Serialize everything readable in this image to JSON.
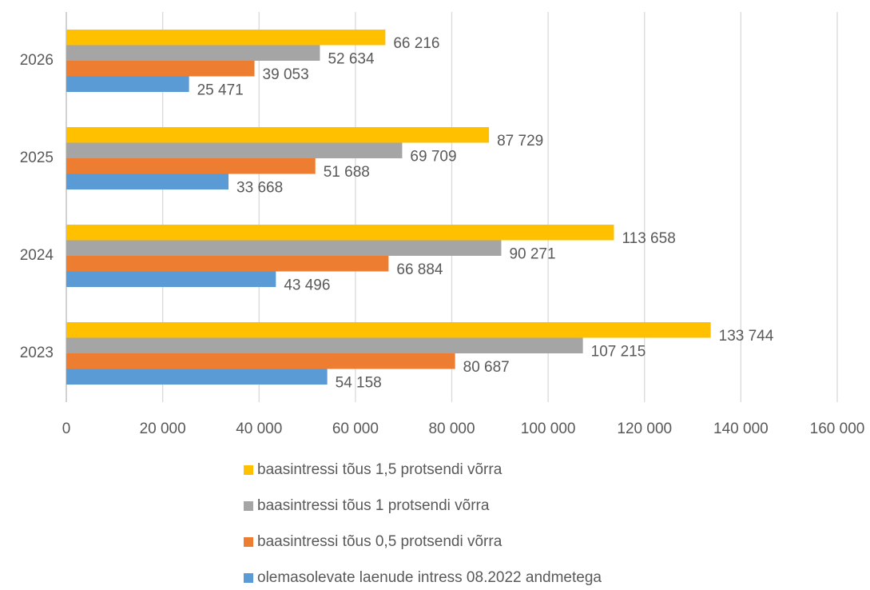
{
  "chart_data": {
    "type": "bar",
    "orientation": "horizontal",
    "categories": [
      "2023",
      "2024",
      "2025",
      "2026"
    ],
    "series": [
      {
        "name": "olemasolevate laenude intress 08.2022 andmetega",
        "color": "#5b9bd5",
        "values": [
          54158,
          43496,
          33668,
          25471
        ],
        "value_labels": [
          "54 158",
          "43 496",
          "33 668",
          "25 471"
        ]
      },
      {
        "name": "baasintressi tõus 0,5 protsendi võrra",
        "color": "#ed7d31",
        "values": [
          80687,
          66884,
          51688,
          39053
        ],
        "value_labels": [
          "80 687",
          "66 884",
          "51 688",
          "39 053"
        ]
      },
      {
        "name": "baasintressi tõus 1 protsendi võrra",
        "color": "#a5a5a5",
        "values": [
          107215,
          90271,
          69709,
          52634
        ],
        "value_labels": [
          "107 215",
          "90 271",
          "69 709",
          "52 634"
        ]
      },
      {
        "name": "baasintressi tõus 1,5 protsendi võrra",
        "color": "#ffc000",
        "values": [
          133744,
          113658,
          87729,
          66216
        ],
        "value_labels": [
          "133 744",
          "113 658",
          "87 729",
          "66 216"
        ]
      }
    ],
    "xlim": [
      0,
      160000
    ],
    "xticks": [
      0,
      {
        "value": 20000,
        "label": "20 000"
      },
      {
        "value": 40000,
        "label": "40 000"
      },
      {
        "value": 60000,
        "label": "60 000"
      },
      {
        "value": 80000,
        "label": "80 000"
      },
      {
        "value": 100000,
        "label": "100 000"
      },
      {
        "value": 120000,
        "label": "120 000"
      },
      {
        "value": 140000,
        "label": "140 000"
      },
      {
        "value": 160000,
        "label": "160 000"
      }
    ],
    "grid": true,
    "legend": "bottom"
  }
}
